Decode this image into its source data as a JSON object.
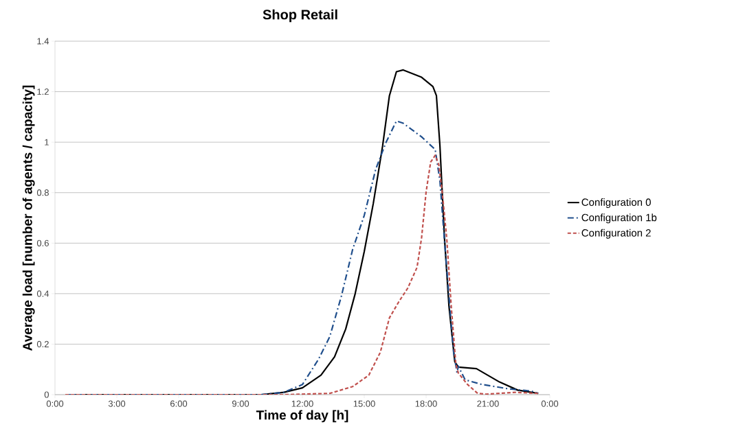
{
  "chart_data": {
    "type": "line",
    "title": "Shop Retail",
    "xlabel": "Time of day [h]",
    "ylabel": "Average load [number of agents / capacity]",
    "xlim": [
      0,
      24
    ],
    "xticks": [
      {
        "value": 0,
        "label": "0:00"
      },
      {
        "value": 3,
        "label": "3:00"
      },
      {
        "value": 6,
        "label": "6:00"
      },
      {
        "value": 9,
        "label": "9:00"
      },
      {
        "value": 12,
        "label": "12:00"
      },
      {
        "value": 15,
        "label": "15:00"
      },
      {
        "value": 18,
        "label": "18:00"
      },
      {
        "value": 21,
        "label": "21:00"
      },
      {
        "value": 24,
        "label": "0:00"
      }
    ],
    "ylim": [
      0,
      1.4
    ],
    "yticks": [
      0,
      0.2,
      0.4,
      0.6,
      0.8,
      1,
      1.2,
      1.4
    ],
    "grid": "y",
    "legend": "right",
    "marker": "none",
    "series": [
      {
        "name": "Configuration 0",
        "color": "#000000",
        "line_style": "solid",
        "x": [
          0.5,
          10,
          11.1,
          12,
          12.9,
          13.56,
          14.1,
          14.56,
          15,
          15.44,
          15.89,
          16.22,
          16.56,
          16.89,
          17.78,
          18.33,
          18.5,
          18.67,
          18.89,
          19.11,
          19.39,
          19.56,
          20.44,
          21.56,
          22.44,
          23.44
        ],
        "values": [
          0,
          0,
          0.009,
          0.027,
          0.077,
          0.15,
          0.26,
          0.4,
          0.567,
          0.758,
          0.985,
          1.184,
          1.279,
          1.286,
          1.257,
          1.22,
          1.184,
          0.986,
          0.621,
          0.349,
          0.131,
          0.109,
          0.103,
          0.05,
          0.018,
          0.005
        ]
      },
      {
        "name": "Configuration 1b",
        "color": "#1f4e8c",
        "line_style": "dashdot",
        "x": [
          0.5,
          10,
          11.1,
          12,
          12.78,
          13.33,
          13.89,
          14.44,
          15,
          15.56,
          16.06,
          16.56,
          16.89,
          17.78,
          18.44,
          18.67,
          18.9,
          19.11,
          19.33,
          19.5,
          19.56,
          19.89,
          20.67,
          22,
          23.11,
          23.44
        ],
        "values": [
          0,
          0,
          0.009,
          0.04,
          0.14,
          0.23,
          0.39,
          0.576,
          0.71,
          0.894,
          1.0,
          1.084,
          1.075,
          1.021,
          0.971,
          0.848,
          0.6,
          0.39,
          0.17,
          0.087,
          0.113,
          0.059,
          0.041,
          0.023,
          0.014,
          0.005
        ]
      },
      {
        "name": "Configuration 2",
        "color": "#c0504d",
        "line_style": "dashed",
        "x": [
          0.5,
          11.1,
          13.33,
          14.44,
          15.22,
          15.78,
          16.22,
          16.67,
          17.11,
          17.56,
          17.78,
          18,
          18.22,
          18.44,
          18.61,
          18.78,
          19,
          19.22,
          19.44,
          19.56,
          20,
          20.5,
          20.9,
          22.33,
          23.44
        ],
        "values": [
          0,
          0,
          0.005,
          0.032,
          0.077,
          0.168,
          0.304,
          0.367,
          0.422,
          0.504,
          0.621,
          0.803,
          0.921,
          0.948,
          0.912,
          0.803,
          0.62,
          0.349,
          0.122,
          0.086,
          0.041,
          0.005,
          0.002,
          0.009,
          0.005
        ]
      }
    ]
  }
}
